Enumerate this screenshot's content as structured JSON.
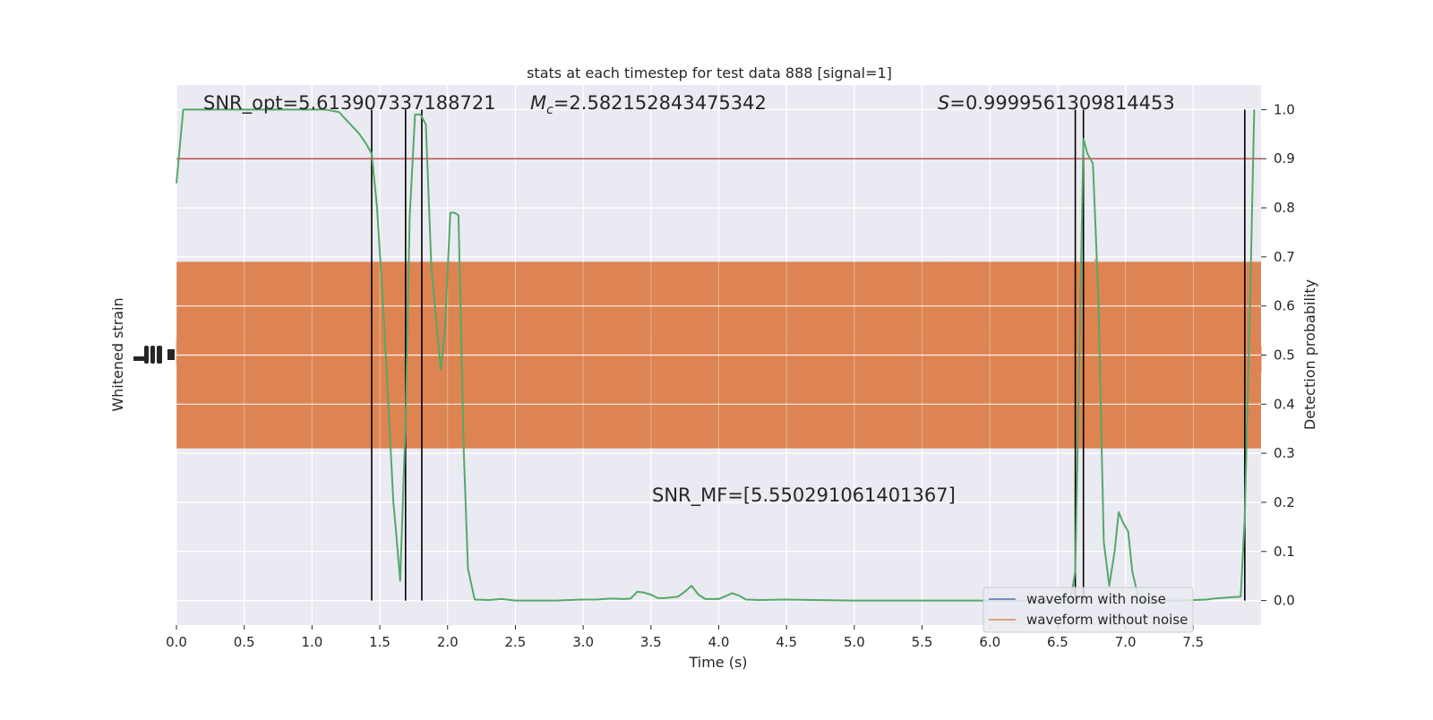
{
  "chart_data": {
    "type": "line",
    "title": "stats at each timestep for test data 888 [signal=1]",
    "xlabel": "Time (s)",
    "ylabel_left": "Whitened strain",
    "ylabel_right": "Detection probability",
    "xlim": [
      0,
      8
    ],
    "ylim_right": [
      -0.05,
      1.05
    ],
    "x_ticks": [
      "0.0",
      "0.5",
      "1.0",
      "1.5",
      "2.0",
      "2.5",
      "3.0",
      "3.5",
      "4.0",
      "4.5",
      "5.0",
      "5.5",
      "6.0",
      "6.5",
      "7.0",
      "7.5"
    ],
    "x_tick_values": [
      0,
      0.5,
      1,
      1.5,
      2,
      2.5,
      3,
      3.5,
      4,
      4.5,
      5,
      5.5,
      6,
      6.5,
      7,
      7.5
    ],
    "right_ticks": [
      "0.0",
      "0.1",
      "0.2",
      "0.3",
      "0.4",
      "0.5",
      "0.6",
      "0.7",
      "0.8",
      "0.9",
      "1.0"
    ],
    "right_tick_values": [
      0,
      0.1,
      0.2,
      0.3,
      0.4,
      0.5,
      0.6,
      0.7,
      0.8,
      0.9,
      1.0
    ],
    "grid": true,
    "legend_position": "lower-right",
    "annotations": {
      "snr_opt": "SNR_opt=5.613907337188721",
      "mc_symbol": "M",
      "mc_sub": "c",
      "mc_value": "=2.582152843475342",
      "s_symbol": "S",
      "s_value": "=0.9999561309814453",
      "snr_mf": "SNR_MF=[5.550291061401367]"
    },
    "threshold": {
      "value": 0.9,
      "color": "#c44e52"
    },
    "vertical_lines_x": [
      1.44,
      1.69,
      1.81,
      6.63,
      6.69,
      7.88
    ],
    "series": [
      {
        "name": "waveform with noise",
        "color": "#4c72b0",
        "kind": "strain"
      },
      {
        "name": "waveform without noise",
        "color": "#dd8452",
        "kind": "strain",
        "band_center": 0.5,
        "band_core_halfwidth": 0.19,
        "band_spike_halfwidth": 0.42
      },
      {
        "color": "#55a868",
        "kind": "probability",
        "x": [
          0,
          0.05,
          0.1,
          0.2,
          0.3,
          0.4,
          0.5,
          0.6,
          0.7,
          0.8,
          0.9,
          1.0,
          1.1,
          1.2,
          1.25,
          1.3,
          1.35,
          1.4,
          1.44,
          1.48,
          1.52,
          1.56,
          1.6,
          1.62,
          1.65,
          1.69,
          1.72,
          1.76,
          1.8,
          1.84,
          1.88,
          1.92,
          1.95,
          1.98,
          2.02,
          2.05,
          2.08,
          2.12,
          2.15,
          2.2,
          2.3,
          2.4,
          2.5,
          2.6,
          2.7,
          2.8,
          2.9,
          3.0,
          3.1,
          3.2,
          3.3,
          3.35,
          3.4,
          3.45,
          3.5,
          3.55,
          3.6,
          3.7,
          3.75,
          3.8,
          3.85,
          3.9,
          4.0,
          4.1,
          4.15,
          4.2,
          4.3,
          4.5,
          4.7,
          5.0,
          5.5,
          5.8,
          6.0,
          6.2,
          6.3,
          6.4,
          6.5,
          6.55,
          6.6,
          6.63,
          6.66,
          6.69,
          6.72,
          6.76,
          6.8,
          6.84,
          6.88,
          6.92,
          6.95,
          6.98,
          7.02,
          7.05,
          7.1,
          7.2,
          7.4,
          7.6,
          7.65,
          7.7,
          7.75,
          7.8,
          7.85,
          7.88,
          7.92,
          7.95
        ],
        "y": [
          0.85,
          1.0,
          1.0,
          1.0,
          1.0,
          1.0,
          1.0,
          1.0,
          1.0,
          1.0,
          1.0,
          1.0,
          1.0,
          0.995,
          0.98,
          0.965,
          0.95,
          0.93,
          0.91,
          0.8,
          0.62,
          0.42,
          0.2,
          0.14,
          0.04,
          0.36,
          0.78,
          0.99,
          0.99,
          0.97,
          0.68,
          0.56,
          0.47,
          0.55,
          0.79,
          0.79,
          0.785,
          0.3,
          0.065,
          0.002,
          0.001,
          0.003,
          0.0,
          0.0,
          0.0,
          0.0,
          0.001,
          0.002,
          0.002,
          0.004,
          0.003,
          0.004,
          0.018,
          0.016,
          0.012,
          0.005,
          0.005,
          0.008,
          0.018,
          0.03,
          0.012,
          0.003,
          0.003,
          0.015,
          0.01,
          0.002,
          0.001,
          0.002,
          0.001,
          0.0,
          0.0,
          0.0,
          0.0,
          0.0,
          0.0,
          0.0,
          0.0,
          0.0,
          0.01,
          0.06,
          0.5,
          0.94,
          0.91,
          0.89,
          0.62,
          0.12,
          0.03,
          0.1,
          0.18,
          0.16,
          0.14,
          0.06,
          0.0,
          0.0,
          0.0,
          0.002,
          0.004,
          0.005,
          0.006,
          0.007,
          0.008,
          0.17,
          0.62,
          1.0
        ]
      }
    ]
  }
}
